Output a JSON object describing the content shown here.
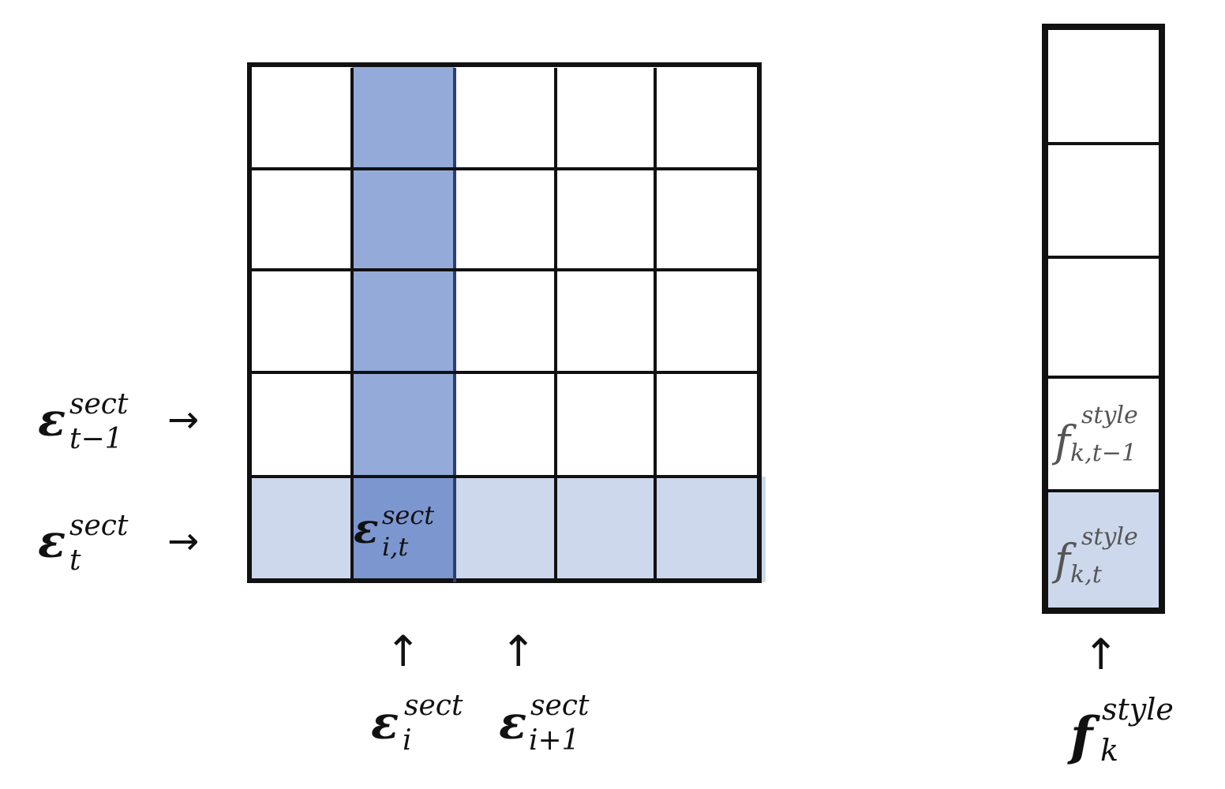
{
  "colors": {
    "column_highlight": "#94ABD9",
    "row_highlight": "#CDD8EC",
    "cell_highlight": "#7C96D0",
    "grid_line": "#111111",
    "text": "#111111",
    "style_text": "#555555"
  },
  "matrix": {
    "rows": 5,
    "cols": 5,
    "highlight_col_index": 1,
    "highlight_row_index": 4
  },
  "style_vector": {
    "cells": 5,
    "highlight_cell_index": 4
  },
  "labels": {
    "row_prev": {
      "base": "ε",
      "sup": "sect",
      "sub": "t−1"
    },
    "row_cur": {
      "base": "ε",
      "sup": "sect",
      "sub": "t"
    },
    "cell": {
      "base": "ε",
      "sup": "sect",
      "sub": "i,t"
    },
    "col_i": {
      "base": "ε",
      "sup": "sect",
      "sub": "i"
    },
    "col_i1": {
      "base": "ε",
      "sup": "sect",
      "sub": "i+1"
    },
    "style_prev": {
      "base": "f",
      "sup": "style",
      "sub": "k,t−1"
    },
    "style_cur": {
      "base": "f",
      "sup": "style",
      "sub": "k,t"
    },
    "style_vec": {
      "base": "f",
      "sup": "style",
      "sub": "k"
    },
    "arrow_right": "→",
    "arrow_up": "↑"
  }
}
